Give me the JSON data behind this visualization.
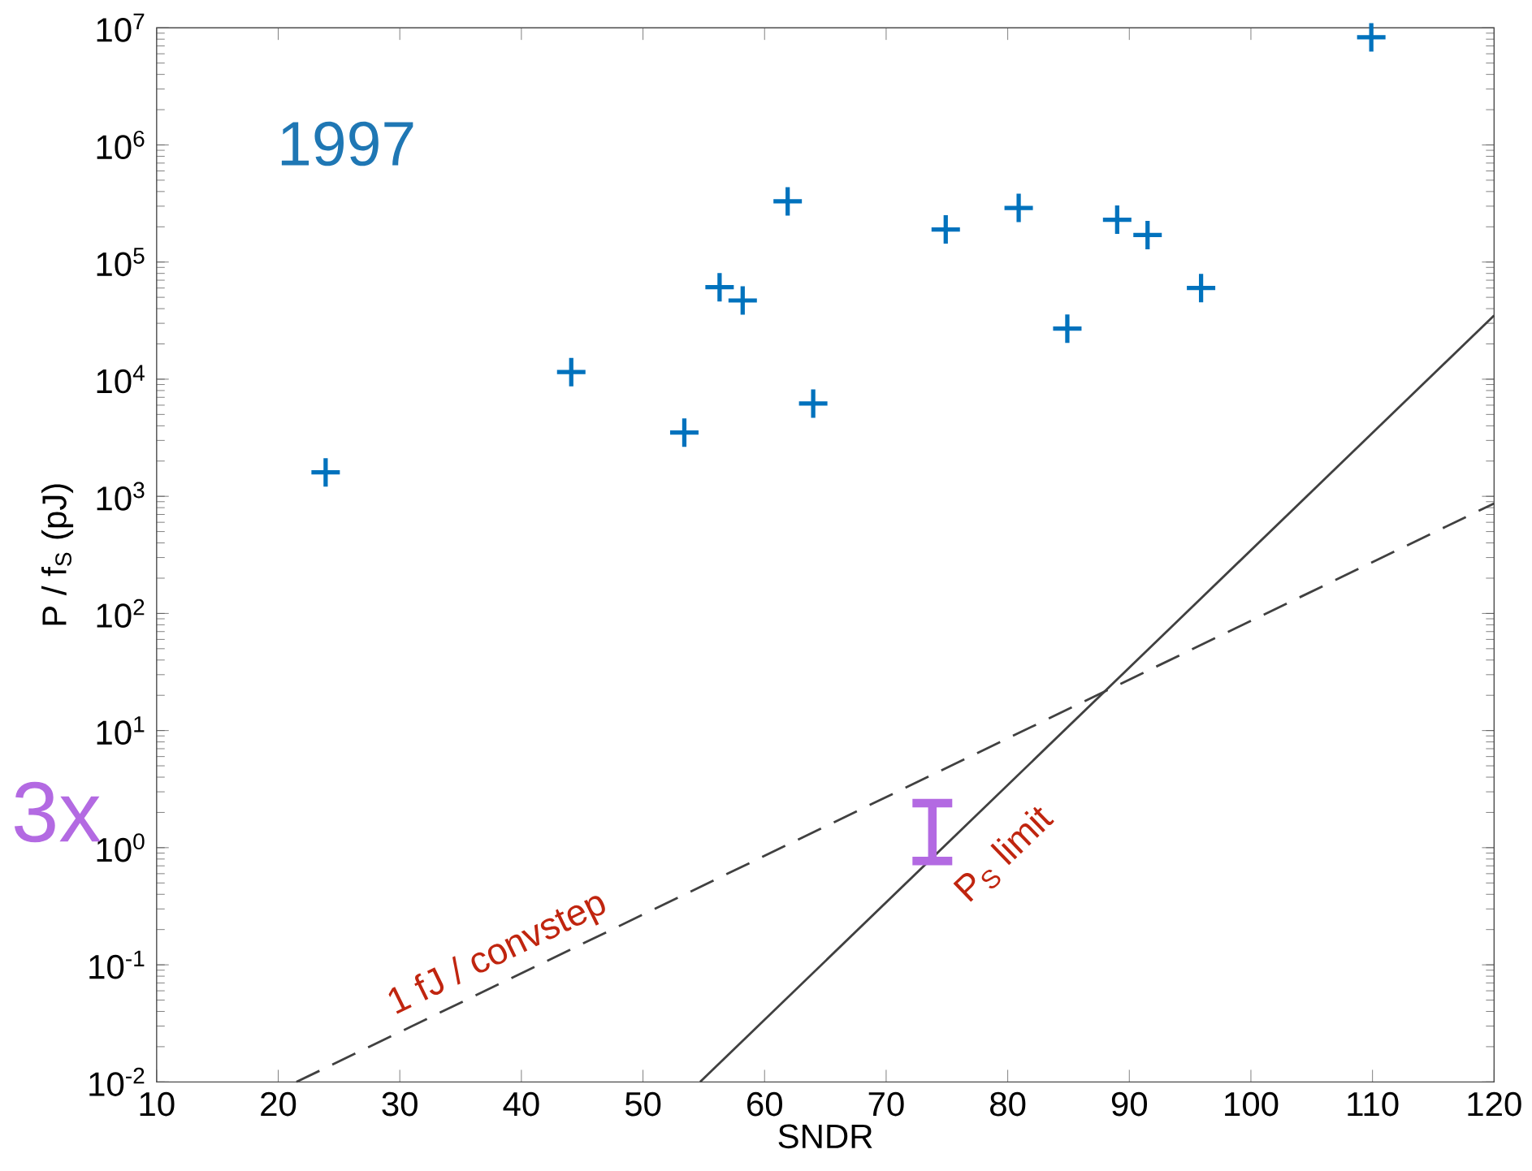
{
  "chart_data": {
    "type": "scatter",
    "xlabel": "SNDR",
    "ylabel": "P / f$_{S}$ (pJ)",
    "log": "y",
    "xlim": [
      10,
      120
    ],
    "ylim": [
      0.01,
      10000000
    ],
    "xticks": [
      10,
      20,
      30,
      40,
      50,
      60,
      70,
      80,
      90,
      100,
      110,
      120
    ],
    "yticks": [
      {
        "value": 0.01,
        "label": "10$^{-2}$"
      },
      {
        "value": 0.1,
        "label": "10$^{-1}$"
      },
      {
        "value": 1,
        "label": "10$^{0}$"
      },
      {
        "value": 10,
        "label": "10$^{1}$"
      },
      {
        "value": 100,
        "label": "10$^{2}$"
      },
      {
        "value": 1000,
        "label": "10$^{3}$"
      },
      {
        "value": 10000,
        "label": "10$^{4}$"
      },
      {
        "value": 100000,
        "label": "10$^{5}$"
      },
      {
        "value": 1000000,
        "label": "10$^{6}$"
      },
      {
        "value": 10000000,
        "label": "10$^{7}$"
      }
    ],
    "series": [
      {
        "color": "#0072bd",
        "marker": "cross",
        "x": [
          23.9,
          44.1,
          53.4,
          56.3,
          58.2,
          61.9,
          64.0,
          74.9,
          80.9,
          84.9,
          89.0,
          91.5,
          95.9,
          109.9
        ],
        "values": [
          1600,
          11500,
          3500,
          61000,
          47000,
          330000,
          6200,
          190000,
          290000,
          27000,
          230000,
          170000,
          60000,
          8300000
        ]
      },
      {
        "type": "line",
        "color": "#404040",
        "line_style": "solid",
        "marker": "none",
        "x": [
          54.7,
          120
        ],
        "values": [
          0.01,
          35000
        ]
      },
      {
        "type": "line",
        "color": "#404040",
        "line_style": "dashed",
        "marker": "none",
        "x": [
          21.5,
          120
        ],
        "values": [
          0.01,
          870
        ]
      },
      {
        "type": "line",
        "color": "#b36ae2",
        "line_style": "solid",
        "marker": "none",
        "x": [
          73.8,
          73.8
        ],
        "values": [
          0.77,
          2.4
        ]
      }
    ],
    "annotations": [
      "1997",
      "3x",
      "P$_{S}$ limit",
      "1 fJ / convstep"
    ]
  }
}
